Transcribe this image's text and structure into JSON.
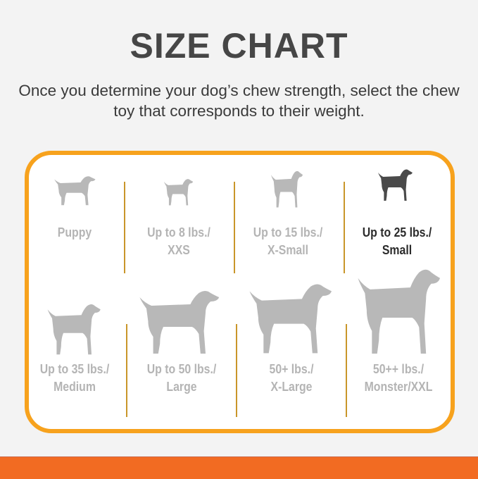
{
  "header": {
    "title": "SIZE CHART",
    "subtitle": "Once you determine your dog’s chew strength, select the chew toy that corresponds to their weight."
  },
  "colors": {
    "background": "#f3f3f3",
    "card_border": "#f7a21d",
    "bottom_bar": "#f26b22",
    "inactive_text": "#b4b4b4",
    "active_text": "#2b2b2b"
  },
  "sizes": [
    {
      "line1": "Puppy",
      "line2": "",
      "icon": "puppy-icon",
      "selected": false
    },
    {
      "line1": "Up to 8 lbs./",
      "line2": "XXS",
      "icon": "chihuahua-icon",
      "selected": false
    },
    {
      "line1": "Up to 15 lbs./",
      "line2": "X-Small",
      "icon": "miniature-pinscher-icon",
      "selected": false
    },
    {
      "line1": "Up to 25 lbs./",
      "line2": "Small",
      "icon": "terrier-icon",
      "selected": true
    },
    {
      "line1": "Up to 35 lbs./",
      "line2": "Medium",
      "icon": "beagle-icon",
      "selected": false
    },
    {
      "line1": "Up to 50 lbs./",
      "line2": "Large",
      "icon": "retriever-icon",
      "selected": false
    },
    {
      "line1": "50+ lbs./",
      "line2": "X-Large",
      "icon": "shepherd-icon",
      "selected": false
    },
    {
      "line1": "50++ lbs./",
      "line2": "Monster/XXL",
      "icon": "great-dane-icon",
      "selected": false
    }
  ]
}
